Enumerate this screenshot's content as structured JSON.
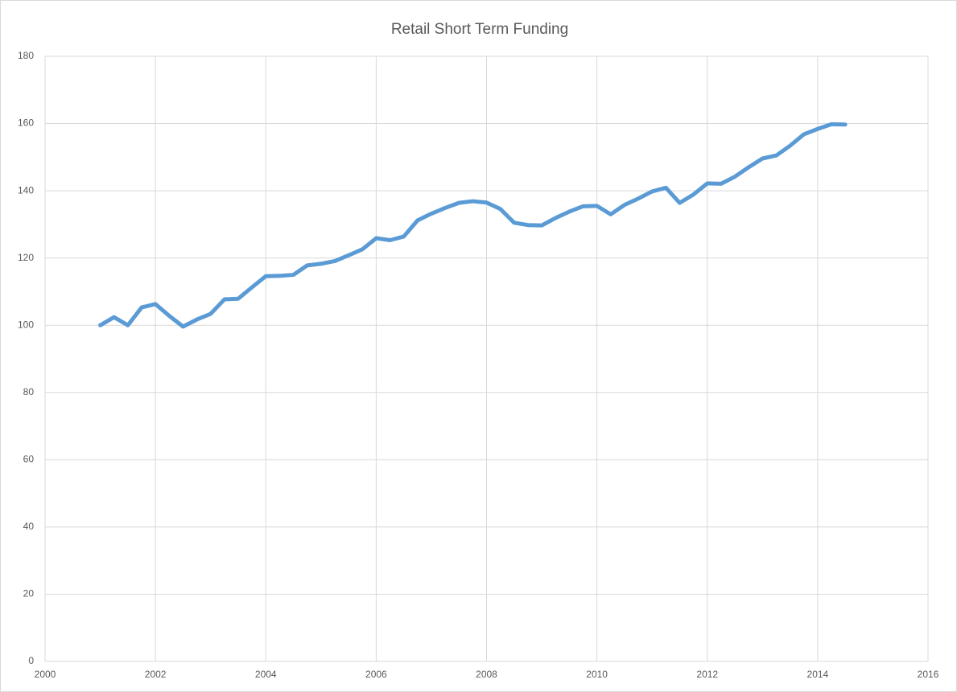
{
  "chart_data": {
    "type": "line",
    "title": "Retail Short Term Funding",
    "x": [
      2001,
      2001.25,
      2001.5,
      2001.75,
      2002,
      2002.25,
      2002.5,
      2002.75,
      2003,
      2003.25,
      2003.5,
      2003.75,
      2004,
      2004.25,
      2004.5,
      2004.75,
      2005,
      2005.25,
      2005.5,
      2005.75,
      2006,
      2006.25,
      2006.5,
      2006.75,
      2007,
      2007.25,
      2007.5,
      2007.75,
      2008,
      2008.25,
      2008.5,
      2008.75,
      2009,
      2009.25,
      2009.5,
      2009.75,
      2010,
      2010.25,
      2010.5,
      2010.75,
      2011,
      2011.25,
      2011.5,
      2011.75,
      2012,
      2012.25,
      2012.5,
      2012.75,
      2013,
      2013.25,
      2013.5,
      2013.75,
      2014,
      2014.25,
      2014.5
    ],
    "values": [
      100,
      102.4,
      100,
      105.3,
      106.3,
      102.8,
      99.6,
      101.7,
      103.4,
      107.7,
      107.9,
      111.3,
      114.6,
      114.7,
      115.0,
      117.8,
      118.3,
      119.1,
      120.8,
      122.6,
      125.9,
      125.3,
      126.4,
      131.2,
      133.2,
      134.9,
      136.4,
      136.9,
      136.5,
      134.6,
      130.5,
      129.8,
      129.7,
      131.9,
      133.8,
      135.4,
      135.5,
      133.0,
      135.8,
      137.7,
      139.8,
      140.9,
      136.4,
      138.9,
      142.2,
      142.1,
      144.2,
      147.0,
      149.6,
      150.5,
      153.4,
      156.8,
      158.4,
      159.8,
      159.7
    ],
    "color": "#5b9bd5",
    "xlim": [
      2000,
      2016
    ],
    "xticks": [
      2000,
      2002,
      2004,
      2006,
      2008,
      2010,
      2012,
      2014,
      2016
    ],
    "ylim": [
      0,
      180
    ],
    "yticks": [
      0,
      20,
      40,
      60,
      80,
      100,
      120,
      140,
      160,
      180
    ],
    "grid": true
  }
}
